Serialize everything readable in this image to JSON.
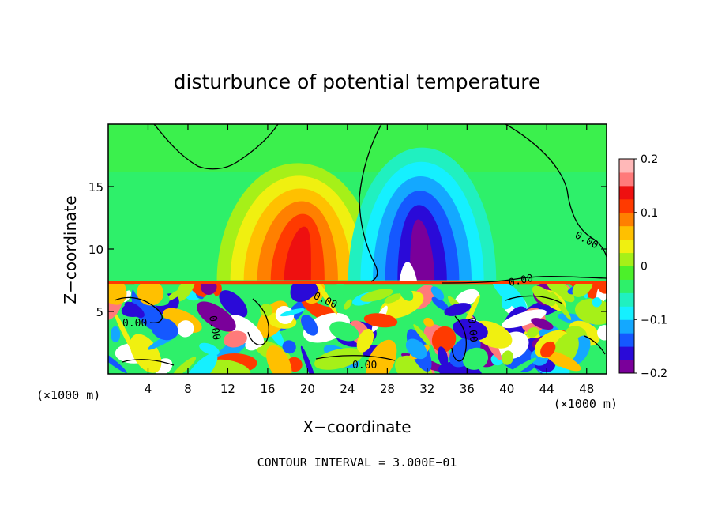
{
  "chart_data": {
    "type": "heatmap",
    "title": "disturbunce of potential temperature",
    "xlabel": "X−coordinate",
    "ylabel": "Z−coordinate",
    "x_unit": "(×1000 m)",
    "y_unit": "(×1000 m)",
    "xlim": [
      0,
      50
    ],
    "ylim": [
      0,
      20
    ],
    "x_ticks": [
      4,
      8,
      12,
      16,
      20,
      24,
      28,
      32,
      36,
      40,
      44,
      48
    ],
    "y_ticks": [
      5,
      10,
      15
    ],
    "colorbar": {
      "range": [
        -0.2,
        0.2
      ],
      "ticks": [
        0.2,
        0.1,
        0,
        -0.1,
        -0.2
      ],
      "tick_labels": [
        "0.2",
        "0.1",
        "0",
        "−0.1",
        "−0.2"
      ],
      "colors": [
        "#7a009a",
        "#2a0ad8",
        "#1558ff",
        "#14a8ff",
        "#15f0ff",
        "#20f0c0",
        "#2ef06a",
        "#4cf02a",
        "#a6f018",
        "#f0f010",
        "#ffc000",
        "#ff8000",
        "#ff3a00",
        "#ee1010",
        "#ff7a7a",
        "#ffb8b8"
      ]
    },
    "contour_interval_label": "CONTOUR INTERVAL = 3.000E−01",
    "contour_labels": [
      "0.00",
      "0.00",
      "0.00",
      "0.00",
      "0.00",
      "0.00",
      "0.00"
    ],
    "regions": [
      {
        "feature": "warm anomaly",
        "x": [
          13,
          25
        ],
        "z": [
          7.5,
          15
        ],
        "peak": 0.17
      },
      {
        "feature": "cold anomaly",
        "x": [
          26,
          37
        ],
        "z": [
          7.5,
          16
        ],
        "peak": -0.2
      },
      {
        "feature": "background",
        "x": [
          0,
          50
        ],
        "z": [
          15,
          20
        ],
        "value": 0.0
      },
      {
        "feature": "turbulent layer",
        "x": [
          0,
          50
        ],
        "z": [
          0,
          7.2
        ],
        "value": "mixed ±0.2"
      }
    ]
  }
}
